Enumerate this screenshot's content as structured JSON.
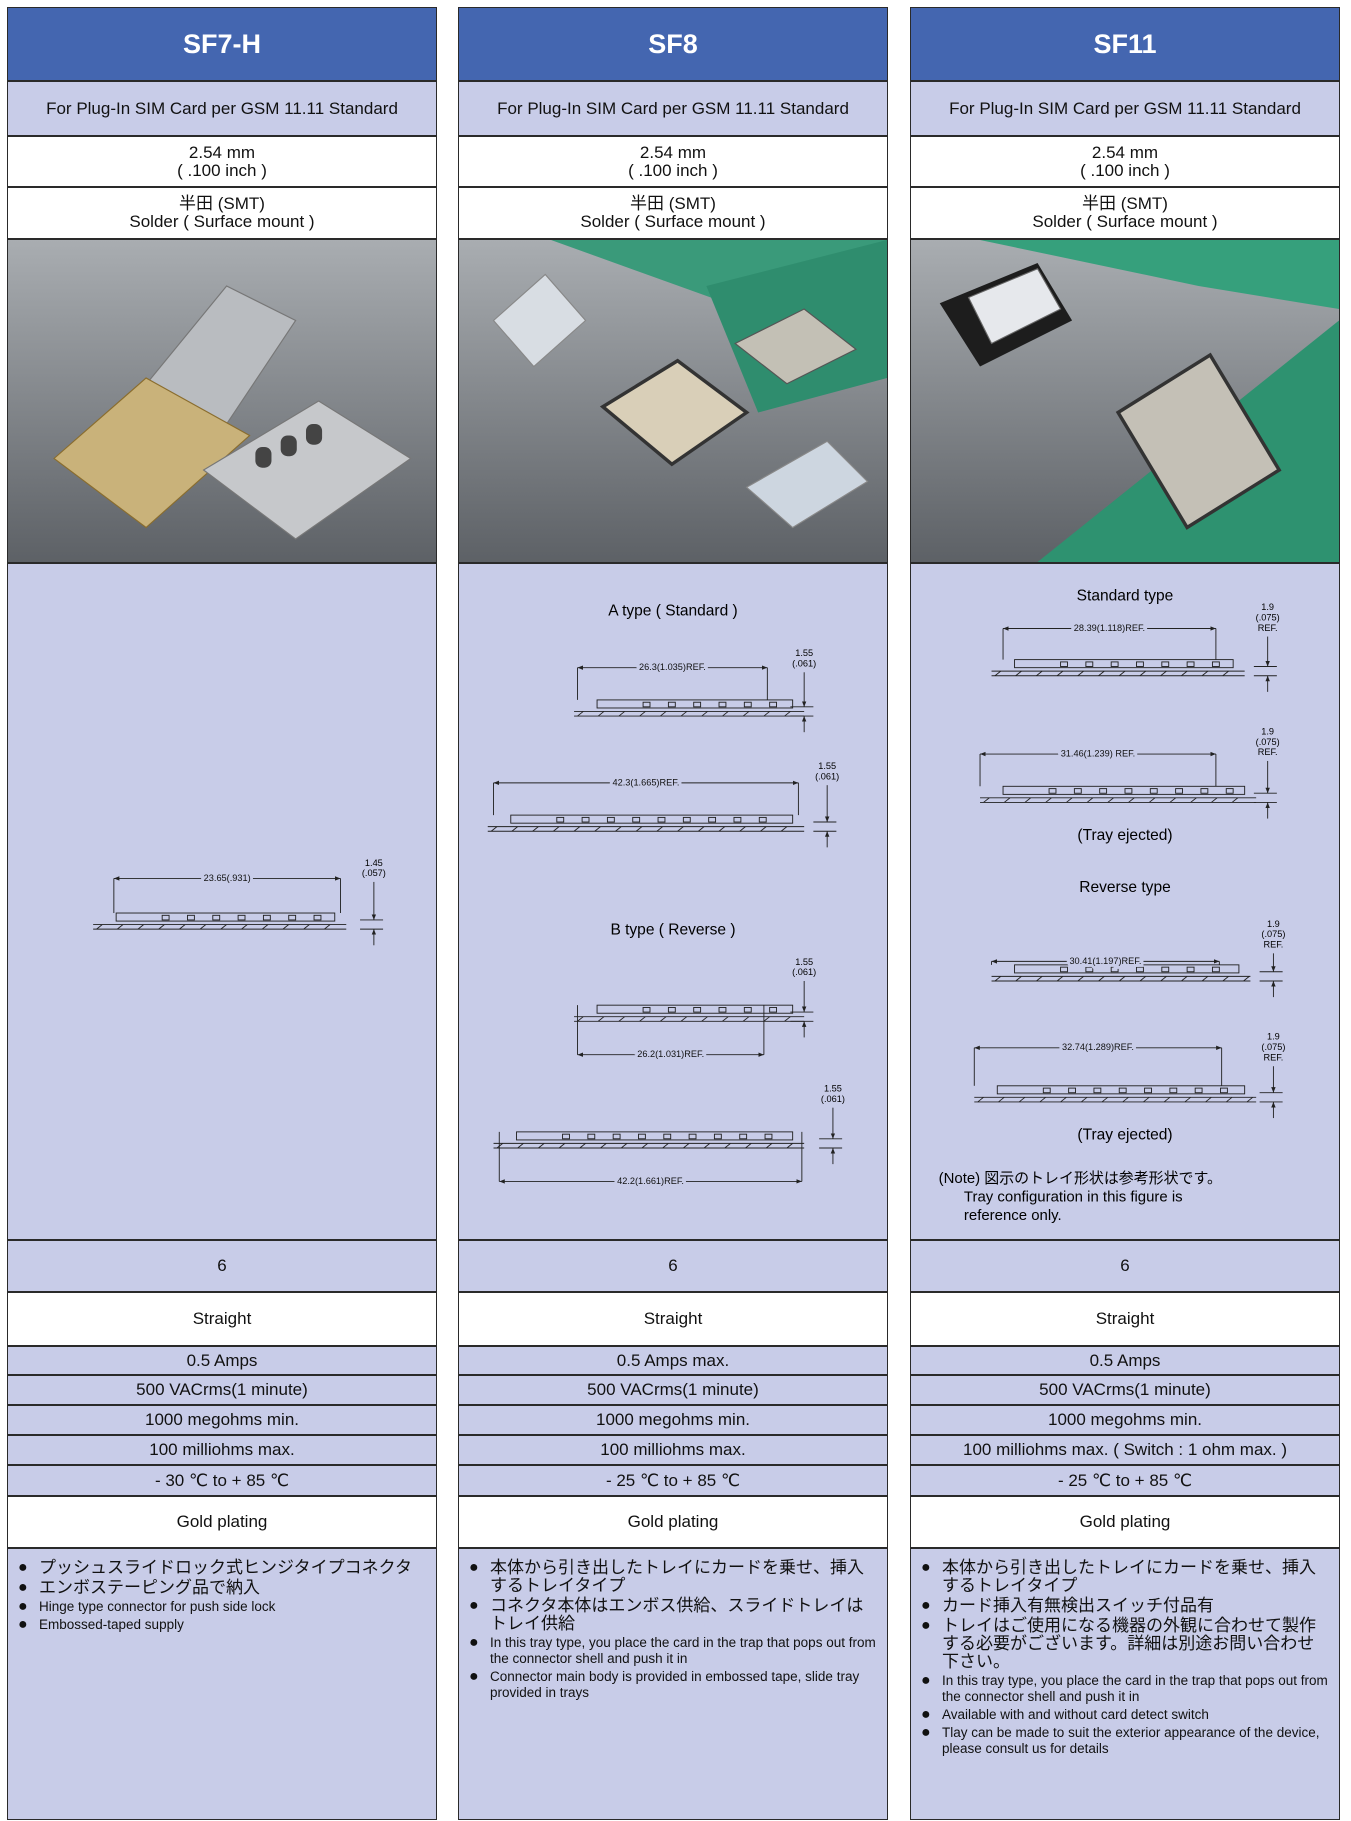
{
  "columns": [
    {
      "name": "SF7-H",
      "standard": "For Plug-In SIM Card per GSM 11.11 Standard",
      "pitch": [
        "2.54 mm",
        "( .100 inch )"
      ],
      "mounting": [
        "半田 (SMT)",
        "Solder ( Surface mount )"
      ],
      "drawings": [
        {
          "length": "23.65(.931)",
          "height": [
            "1.45",
            "(.057)"
          ]
        }
      ],
      "contacts": "6",
      "termination": "Straight",
      "current": "0.5 Amps",
      "voltage": "500 VACrms(1 minute)",
      "insulation": "1000 megohms min.",
      "contact_resistance": "100 milliohms max.",
      "temperature": "- 30 ℃  to  + 85 ℃",
      "plating": "Gold plating",
      "features": [
        "プッシュスライドロック式ヒンジタイプコネクタ",
        "エンボステーピング品で納入",
        "Hinge type connector for push side lock",
        "Embossed-taped supply"
      ]
    },
    {
      "name": "SF8",
      "standard": "For Plug-In SIM Card per GSM 11.11 Standard",
      "pitch": [
        "2.54 mm",
        "( .100 inch )"
      ],
      "mounting": [
        "半田 (SMT)",
        "Solder ( Surface mount )"
      ],
      "drawings": [
        {
          "heading": "A type ( Standard )"
        },
        {
          "length": "26.3(1.035)REF.",
          "height": [
            "1.55",
            "(.061)"
          ]
        },
        {
          "length": "42.3(1.665)REF.",
          "height": [
            "1.55",
            "(.061)"
          ]
        },
        {
          "heading": "B type ( Reverse )"
        },
        {
          "length": "26.2(1.031)REF.",
          "height": [
            "1.55",
            "(.061)"
          ]
        },
        {
          "length": "42.2(1.661)REF.",
          "height": [
            "1.55",
            "(.061)"
          ]
        }
      ],
      "contacts": "6",
      "termination": "Straight",
      "current": "0.5 Amps max.",
      "voltage": "500 VACrms(1 minute)",
      "insulation": "1000 megohms min.",
      "contact_resistance": "100 milliohms max.",
      "temperature": "- 25 ℃  to  + 85 ℃",
      "plating": "Gold plating",
      "features": [
        "本体から引き出したトレイにカードを乗せ、挿入するトレイタイプ",
        "コネクタ本体はエンボス供給、スライドトレイはトレイ供給",
        "In this tray type, you place the card in the trap that pops out from the connector shell and push it in",
        "Connector main body is provided in embossed tape, slide tray provided in trays"
      ]
    },
    {
      "name": "SF11",
      "standard": "For Plug-In SIM Card per GSM 11.11 Standard",
      "pitch": [
        "2.54 mm",
        "( .100 inch )"
      ],
      "mounting": [
        "半田 (SMT)",
        "Solder ( Surface mount )"
      ],
      "drawings": [
        {
          "heading": "Standard type"
        },
        {
          "length": "28.39(1.118)REF.",
          "height": [
            "1.9",
            "(.075)",
            "REF."
          ]
        },
        {
          "length": "31.46(1.239) REF.",
          "height": [
            "1.9",
            "(.075)",
            "REF."
          ]
        },
        {
          "caption": "(Tray ejected)"
        },
        {
          "heading": "Reverse type"
        },
        {
          "length": "30.41(1.197)REF.",
          "height": [
            "1.9",
            "(.075)",
            "REF."
          ]
        },
        {
          "length": "32.74(1.289)REF.",
          "height": [
            "1.9",
            "(.075)",
            "REF."
          ]
        },
        {
          "caption": "(Tray ejected)"
        }
      ],
      "note": [
        "(Note) 図示のトレイ形状は参考形状です。",
        "Tray configuration in this figure is",
        "reference only."
      ],
      "contacts": "6",
      "termination": "Straight",
      "current": "0.5 Amps",
      "voltage": "500 VACrms(1 minute)",
      "insulation": "1000 megohms min.",
      "contact_resistance": "100 milliohms max. ( Switch : 1 ohm max. )",
      "temperature": "- 25 ℃  to  + 85 ℃",
      "plating": "Gold plating",
      "features": [
        "本体から引き出したトレイにカードを乗せ、挿入するトレイタイプ",
        "カード挿入有無検出スイッチ付品有",
        "トレイはご使用になる機器の外観に合わせて製作する必要がございます。詳細は別途お問い合わせ下さい。",
        "In this tray type, you place the card in the trap that pops out from the connector shell and push it in",
        "Available with and without card detect switch",
        "Tlay can be made to suit the exterior appearance of the device, please consult us for details"
      ]
    }
  ]
}
